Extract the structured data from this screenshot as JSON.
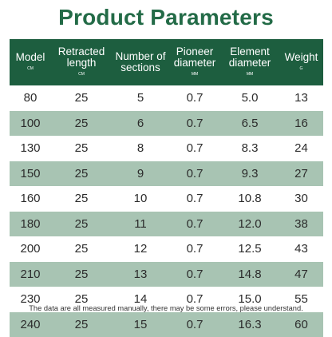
{
  "title": "Product Parameters",
  "table": {
    "columns": [
      {
        "label": "Model",
        "unit": "CM"
      },
      {
        "label": "Retracted length",
        "unit": "CM"
      },
      {
        "label": "Number of sections",
        "unit": ""
      },
      {
        "label": "Pioneer diameter",
        "unit": "MM"
      },
      {
        "label": "Element diameter",
        "unit": "MM"
      },
      {
        "label": "Weight",
        "unit": "G"
      }
    ],
    "rows": [
      [
        "80",
        "25",
        "5",
        "0.7",
        "5.0",
        "13"
      ],
      [
        "100",
        "25",
        "6",
        "0.7",
        "6.5",
        "16"
      ],
      [
        "130",
        "25",
        "8",
        "0.7",
        "8.3",
        "24"
      ],
      [
        "150",
        "25",
        "9",
        "0.7",
        "9.3",
        "27"
      ],
      [
        "160",
        "25",
        "10",
        "0.7",
        "10.8",
        "30"
      ],
      [
        "180",
        "25",
        "11",
        "0.7",
        "12.0",
        "38"
      ],
      [
        "200",
        "25",
        "12",
        "0.7",
        "12.5",
        "43"
      ],
      [
        "210",
        "25",
        "13",
        "0.7",
        "14.8",
        "47"
      ],
      [
        "230",
        "25",
        "14",
        "0.7",
        "15.0",
        "55"
      ],
      [
        "240",
        "25",
        "15",
        "0.7",
        "16.3",
        "60"
      ]
    ]
  },
  "footnote": "The data are all measured manually, there may be some errors, please understand.",
  "colors": {
    "title": "#236b47",
    "header_bg": "#1d5e3f",
    "stripe": "#a8c4b3"
  }
}
